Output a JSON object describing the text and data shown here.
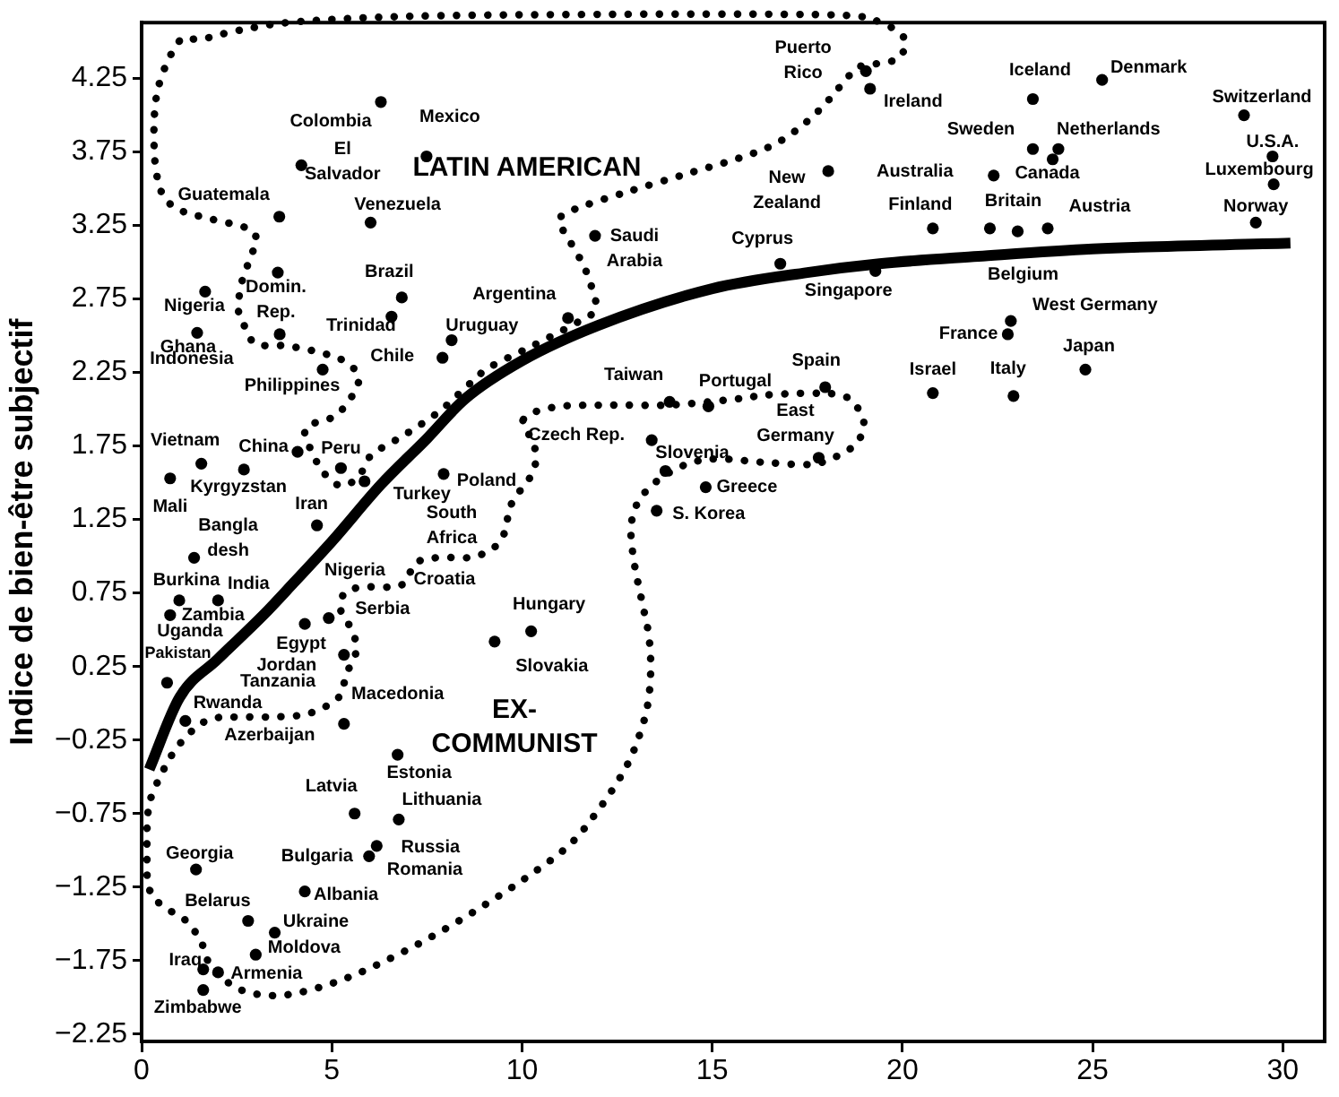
{
  "chart_data": {
    "type": "scatter",
    "ylabel": "Indice de bien-être subjectif",
    "marker": "circle",
    "xlim": [
      0,
      31.1
    ],
    "ylim": [
      -2.3,
      4.63
    ],
    "xticks": [
      0,
      5,
      10,
      15,
      20,
      25,
      30
    ],
    "yticks": [
      {
        "value": -2.25,
        "label": "−2.25"
      },
      {
        "value": -1.75,
        "label": "−1.75"
      },
      {
        "value": -1.25,
        "label": "−1.25"
      },
      {
        "value": -0.75,
        "label": "−0.75"
      },
      {
        "value": -0.25,
        "label": "−0.25"
      },
      0.25,
      0.75,
      1.25,
      1.75,
      2.25,
      2.75,
      3.25,
      3.75,
      4.25
    ],
    "series": [
      {
        "color": "#000000",
        "x": [
          6.29,
          7.49,
          4.2,
          3.62,
          6.02,
          3.58,
          6.84,
          1.67,
          6.57,
          8.15,
          1.46,
          7.91,
          4.76,
          19.04,
          19.15,
          18.05,
          11.92,
          16.79,
          11.21,
          19.29,
          13.88,
          14.9,
          17.97,
          23.43,
          25.25,
          28.98,
          23.43,
          24.1,
          29.73,
          22.4,
          23.95,
          29.76,
          20.8,
          22.3,
          23.82,
          29.29,
          23.03,
          22.85,
          22.77,
          24.81,
          20.8,
          22.92,
          1.57,
          4.1,
          5.24,
          2.69,
          4.61,
          5.86,
          0.75,
          1.38,
          0.99,
          2.01,
          0.75,
          4.29,
          4.92,
          0.67,
          5.32,
          5.32,
          1.15,
          13.41,
          13.77,
          17.8,
          14.83,
          13.54,
          7.94,
          10.24,
          9.28,
          6.73,
          5.6,
          6.76,
          1.43,
          5.98,
          6.18,
          4.29,
          2.8,
          3.5,
          3.0,
          1.62,
          2.01,
          1.62,
          3.63
        ],
        "values": [
          4.09,
          3.72,
          3.66,
          3.31,
          3.27,
          2.93,
          2.76,
          2.8,
          2.63,
          2.47,
          2.52,
          2.35,
          2.27,
          4.3,
          4.18,
          3.62,
          3.18,
          2.99,
          2.62,
          2.94,
          2.05,
          2.02,
          2.15,
          4.11,
          4.24,
          4.0,
          3.77,
          3.77,
          3.72,
          3.59,
          3.7,
          3.53,
          3.23,
          3.23,
          3.23,
          3.27,
          3.21,
          2.6,
          2.51,
          2.27,
          2.11,
          2.09,
          1.63,
          1.71,
          1.6,
          1.59,
          1.21,
          1.51,
          1.53,
          0.99,
          0.7,
          0.7,
          0.6,
          0.54,
          0.58,
          0.14,
          0.33,
          -0.14,
          -0.12,
          1.79,
          1.58,
          1.67,
          1.47,
          1.31,
          1.56,
          0.49,
          0.42,
          -0.35,
          -0.75,
          -0.79,
          -1.13,
          -1.04,
          -0.97,
          -1.28,
          -1.48,
          -1.56,
          -1.71,
          -1.81,
          -1.83,
          -1.95,
          2.51
        ]
      },
      {
        "type": "line",
        "color": "#000000",
        "marker": "none",
        "x": [
          0.2,
          1,
          2,
          3.2,
          4,
          5,
          6.3,
          7.5,
          8.5,
          10,
          12,
          15,
          17.5,
          19.4,
          22,
          25,
          30.2
        ],
        "values": [
          -0.45,
          0.04,
          0.3,
          0.6,
          0.82,
          1.1,
          1.49,
          1.8,
          2.07,
          2.33,
          2.57,
          2.82,
          2.93,
          2.99,
          3.04,
          3.09,
          3.13
        ]
      }
    ],
    "annotations": [
      {
        "text": "Colombia",
        "x": 6.29,
        "y": 4.09
      },
      {
        "text": "Mexico",
        "x": 7.49,
        "y": 3.72
      },
      {
        "text": "El\nSalvador",
        "x": 4.2,
        "y": 3.66
      },
      {
        "text": "Guatemala",
        "x": 3.62,
        "y": 3.31
      },
      {
        "text": "Venezuela",
        "x": 6.02,
        "y": 3.27
      },
      {
        "text": "Domin.\nRep.",
        "x": 3.58,
        "y": 2.93
      },
      {
        "text": "Brazil",
        "x": 6.84,
        "y": 2.76
      },
      {
        "text": "Nigeria",
        "x": 1.67,
        "y": 2.8
      },
      {
        "text": "Trinidad",
        "x": 6.57,
        "y": 2.63
      },
      {
        "text": "Uruguay",
        "x": 8.15,
        "y": 2.47
      },
      {
        "text": "Ghana",
        "x": 1.46,
        "y": 2.52
      },
      "Indonesia",
      {
        "text": "Chile",
        "x": 7.91,
        "y": 2.35
      },
      {
        "text": "Philippines",
        "x": 4.76,
        "y": 2.27
      },
      "LATIN AMERICAN",
      {
        "text": "Puerto\nRico",
        "x": 19.04,
        "y": 4.3
      },
      {
        "text": "Ireland",
        "x": 19.15,
        "y": 4.18
      },
      {
        "text": "New\nZealand",
        "x": 18.05,
        "y": 3.62
      },
      {
        "text": "Saudi\nArabia",
        "x": 11.92,
        "y": 3.18
      },
      {
        "text": "Cyprus",
        "x": 16.79,
        "y": 2.99
      },
      {
        "text": "Argentina",
        "x": 11.21,
        "y": 2.62
      },
      {
        "text": "Singapore",
        "x": 19.29,
        "y": 2.94
      },
      {
        "text": "Taiwan",
        "x": 13.88,
        "y": 2.05
      },
      {
        "text": "Portugal",
        "x": 14.9,
        "y": 2.02
      },
      {
        "text": "Spain",
        "x": 17.97,
        "y": 2.15
      },
      {
        "text": "Iceland",
        "x": 23.43,
        "y": 4.11
      },
      {
        "text": "Denmark",
        "x": 25.25,
        "y": 4.24
      },
      {
        "text": "Switzerland",
        "x": 28.98,
        "y": 4.0
      },
      {
        "text": "Sweden",
        "x": 23.43,
        "y": 3.77
      },
      {
        "text": "Netherlands",
        "x": 24.1,
        "y": 3.77
      },
      {
        "text": "U.S.A.",
        "x": 29.73,
        "y": 3.72
      },
      {
        "text": "Australia",
        "x": 22.4,
        "y": 3.59
      },
      {
        "text": "Canada",
        "x": 23.95,
        "y": 3.7
      },
      {
        "text": "Luxembourg",
        "x": 29.76,
        "y": 3.53
      },
      {
        "text": "Finland",
        "x": 20.8,
        "y": 3.23
      },
      {
        "text": "Britain",
        "x": 22.3,
        "y": 3.23
      },
      {
        "text": "Austria",
        "x": 23.82,
        "y": 3.23
      },
      {
        "text": "Norway",
        "x": 29.29,
        "y": 3.27
      },
      {
        "text": "Belgium",
        "x": 23.03,
        "y": 3.21
      },
      {
        "text": "West Germany",
        "x": 22.85,
        "y": 2.6
      },
      {
        "text": "France",
        "x": 22.77,
        "y": 2.51
      },
      {
        "text": "Japan",
        "x": 24.81,
        "y": 2.27
      },
      {
        "text": "Israel",
        "x": 20.8,
        "y": 2.11
      },
      {
        "text": "Italy",
        "x": 22.92,
        "y": 2.09
      },
      {
        "text": "Vietnam",
        "x": 1.57,
        "y": 1.63
      },
      {
        "text": "China",
        "x": 4.1,
        "y": 1.71
      },
      {
        "text": "Peru",
        "x": 5.24,
        "y": 1.6
      },
      {
        "text": "Kyrgyzstan",
        "x": 2.69,
        "y": 1.59
      },
      {
        "text": "Iran",
        "x": 4.61,
        "y": 1.21
      },
      {
        "text": "Turkey",
        "x": 5.86,
        "y": 1.51
      },
      {
        "text": "Mali",
        "x": 0.75,
        "y": 1.53
      },
      {
        "text": "Bangla\ndesh",
        "x": 1.38,
        "y": 0.99
      },
      {
        "text": "Burkina",
        "x": 0.99,
        "y": 0.7
      },
      {
        "text": "India",
        "x": 2.01,
        "y": 0.7
      },
      "Nigeria",
      {
        "text": "Zambia",
        "x": 0.75,
        "y": 0.6
      },
      "Uganda",
      {
        "text": "Egypt",
        "x": 4.29,
        "y": 0.54
      },
      {
        "text": "Serbia",
        "x": 4.92,
        "y": 0.58
      },
      {
        "text": "Pakistan",
        "x": 0.67,
        "y": 0.14
      },
      {
        "text": "Jordan",
        "x": 5.32,
        "y": 0.33
      },
      "Tanzania",
      "Rwanda",
      {
        "text": "Macedonia",
        "x": 5.32,
        "y": -0.14
      },
      {
        "text": "Azerbaijan",
        "x": 1.15,
        "y": -0.12
      },
      {
        "text": "Czech Rep.",
        "x": 13.41,
        "y": 1.79
      },
      {
        "text": "Slovenia",
        "x": 13.77,
        "y": 1.58
      },
      {
        "text": "East\nGermany",
        "x": 17.8,
        "y": 1.67
      },
      {
        "text": "Greece",
        "x": 14.83,
        "y": 1.47
      },
      {
        "text": "S. Korea",
        "x": 13.54,
        "y": 1.31
      },
      {
        "text": "Poland",
        "x": 7.94,
        "y": 1.56
      },
      "South\nAfrica",
      "Croatia",
      {
        "text": "Hungary",
        "x": 10.24,
        "y": 0.49
      },
      {
        "text": "Slovakia",
        "x": 9.28,
        "y": 0.42
      },
      "EX-\nCOMMUNIST",
      {
        "text": "Estonia",
        "x": 6.73,
        "y": -0.35
      },
      {
        "text": "Latvia",
        "x": 5.6,
        "y": -0.75
      },
      {
        "text": "Lithuania",
        "x": 6.76,
        "y": -0.79
      },
      {
        "text": "Georgia",
        "x": 1.43,
        "y": -1.13
      },
      {
        "text": "Bulgaria",
        "x": 5.98,
        "y": -1.04
      },
      {
        "text": "Russia",
        "x": 6.18,
        "y": -0.97
      },
      "Romania",
      {
        "text": "Albania",
        "x": 4.29,
        "y": -1.28
      },
      {
        "text": "Belarus",
        "x": 2.8,
        "y": -1.48
      },
      {
        "text": "Ukraine",
        "x": 3.5,
        "y": -1.56
      },
      {
        "text": "Moldova",
        "x": 3.0,
        "y": -1.71
      },
      {
        "text": "Iraq",
        "x": 1.62,
        "y": -1.81
      },
      {
        "text": "Armenia",
        "x": 2.01,
        "y": -1.83
      },
      {
        "text": "Zimbabwe",
        "x": 1.62,
        "y": -1.95
      }
    ]
  }
}
